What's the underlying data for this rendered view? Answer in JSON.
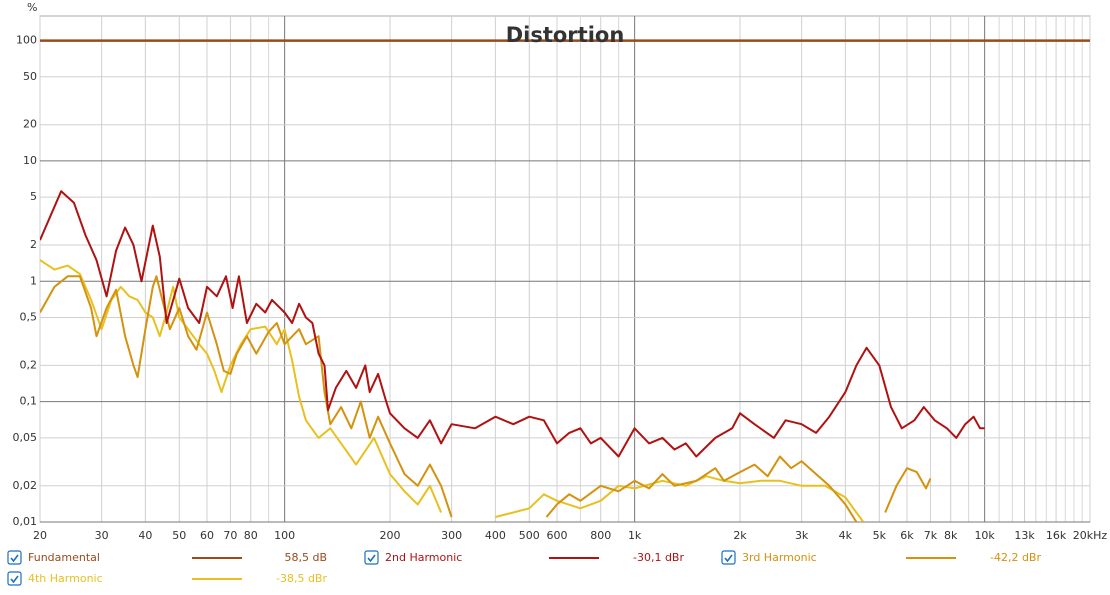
{
  "chart_data": {
    "type": "line",
    "title": "Distortion",
    "y_unit": "%",
    "log_x": true,
    "log_y": true,
    "grid": true,
    "xlim": [
      20,
      20000
    ],
    "ylim": [
      0.01,
      160
    ],
    "xticks": [
      20,
      30,
      40,
      50,
      60,
      70,
      80,
      100,
      200,
      300,
      400,
      500,
      600,
      800,
      {
        "value": 1000,
        "label": "1k"
      },
      {
        "value": 2000,
        "label": "2k"
      },
      {
        "value": 3000,
        "label": "3k"
      },
      {
        "value": 4000,
        "label": "4k"
      },
      {
        "value": 5000,
        "label": "5k"
      },
      {
        "value": 6000,
        "label": "6k"
      },
      {
        "value": 7000,
        "label": "7k"
      },
      {
        "value": 8000,
        "label": "8k"
      },
      {
        "value": 10000,
        "label": "10k"
      },
      {
        "value": 13000,
        "label": "13k"
      },
      {
        "value": 16000,
        "label": "16k"
      },
      {
        "value": 20000,
        "label": "20kHz"
      }
    ],
    "x_minor_grid": [
      90,
      700,
      900,
      9000,
      11000,
      12000,
      14000,
      15000,
      17000,
      18000,
      19000
    ],
    "yticks": [
      100,
      50,
      20,
      10,
      5,
      2,
      1,
      {
        "value": 0.5,
        "label": "0,5"
      },
      {
        "value": 0.2,
        "label": "0,2"
      },
      {
        "value": 0.1,
        "label": "0,1"
      },
      {
        "value": 0.05,
        "label": "0,05"
      },
      {
        "value": 0.02,
        "label": "0,02"
      },
      {
        "value": 0.01,
        "label": "0,01"
      }
    ],
    "series": [
      {
        "name": "Fundamental",
        "color": "#9a4a1c",
        "legend_value": "58,5 dB",
        "x": [
          20,
          20000
        ],
        "values": [
          100,
          100
        ]
      },
      {
        "name": "2nd Harmonic",
        "color": "#b01212",
        "legend_value": "-30,1 dBr",
        "x": [
          20,
          23,
          25,
          27,
          29,
          31,
          33,
          35,
          37,
          39,
          42,
          44,
          46,
          50,
          53,
          57,
          60,
          64,
          68,
          71,
          74,
          78,
          83,
          88,
          92,
          100,
          105,
          110,
          115,
          120,
          125,
          130,
          133,
          140,
          150,
          160,
          170,
          175,
          185,
          195,
          200,
          220,
          240,
          260,
          280,
          300,
          350,
          400,
          450,
          500,
          550,
          600,
          650,
          700,
          750,
          800,
          900,
          1000,
          1100,
          1200,
          1300,
          1400,
          1500,
          1700,
          1900,
          2000,
          2200,
          2500,
          2700,
          3000,
          3300,
          3600,
          4000,
          4300,
          4600,
          5000,
          5400,
          5800,
          6300,
          6700,
          7200,
          7800,
          8300,
          8800,
          9300,
          9700,
          10000
        ],
        "values": [
          2.2,
          5.6,
          4.5,
          2.4,
          1.5,
          0.75,
          1.8,
          2.8,
          2.0,
          1.0,
          2.9,
          1.6,
          0.45,
          1.05,
          0.6,
          0.45,
          0.9,
          0.75,
          1.1,
          0.6,
          1.1,
          0.45,
          0.65,
          0.55,
          0.7,
          0.55,
          0.45,
          0.65,
          0.5,
          0.45,
          0.25,
          0.2,
          0.085,
          0.13,
          0.18,
          0.13,
          0.2,
          0.12,
          0.17,
          0.1,
          0.08,
          0.06,
          0.05,
          0.07,
          0.045,
          0.065,
          0.06,
          0.075,
          0.065,
          0.075,
          0.07,
          0.045,
          0.055,
          0.06,
          0.045,
          0.05,
          0.035,
          0.06,
          0.045,
          0.05,
          0.04,
          0.045,
          0.035,
          0.05,
          0.06,
          0.08,
          0.065,
          0.05,
          0.07,
          0.065,
          0.055,
          0.075,
          0.12,
          0.2,
          0.28,
          0.2,
          0.09,
          0.06,
          0.07,
          0.09,
          0.07,
          0.06,
          0.05,
          0.065,
          0.075,
          0.06,
          0.06
        ]
      },
      {
        "name": "3rd Harmonic",
        "color": "#d4920e",
        "legend_value": "-42,2 dBr",
        "x": [
          20,
          22,
          24,
          26,
          28,
          29,
          31,
          33,
          35,
          37,
          38,
          40,
          42,
          43,
          45,
          47,
          50,
          53,
          56,
          60,
          64,
          67,
          70,
          73,
          78,
          83,
          90,
          95,
          100,
          110,
          115,
          125,
          130,
          135,
          145,
          155,
          165,
          175,
          185,
          200,
          220,
          240,
          260,
          280,
          300,
          350,
          450,
          560,
          600,
          650,
          700,
          800,
          900,
          1000,
          1100,
          1200,
          1300,
          1500,
          1700,
          1800,
          2000,
          2200,
          2400,
          2600,
          2800,
          3000,
          3300,
          3600,
          4000,
          4300,
          4800,
          5200,
          5600,
          6000,
          6400,
          6800,
          7000
        ],
        "values": [
          0.55,
          0.9,
          1.1,
          1.1,
          0.6,
          0.35,
          0.6,
          0.85,
          0.35,
          0.2,
          0.16,
          0.4,
          0.9,
          1.1,
          0.65,
          0.4,
          0.6,
          0.35,
          0.27,
          0.55,
          0.3,
          0.18,
          0.17,
          0.25,
          0.35,
          0.25,
          0.38,
          0.45,
          0.3,
          0.4,
          0.3,
          0.35,
          0.12,
          0.065,
          0.09,
          0.06,
          0.1,
          0.05,
          0.075,
          0.045,
          0.025,
          0.02,
          0.03,
          0.02,
          0.011,
          null,
          null,
          0.011,
          0.014,
          0.017,
          0.015,
          0.02,
          0.018,
          0.022,
          0.019,
          0.025,
          0.02,
          0.022,
          0.028,
          0.022,
          0.026,
          0.03,
          0.024,
          0.035,
          0.028,
          0.032,
          0.025,
          0.02,
          0.014,
          0.01,
          null,
          0.012,
          0.02,
          0.028,
          0.026,
          0.019,
          0.023
        ]
      },
      {
        "name": "4th Harmonic",
        "color": "#e8c020",
        "legend_value": "-38,5 dBr",
        "x": [
          20,
          22,
          24,
          26,
          28,
          30,
          32,
          34,
          36,
          38,
          40,
          42,
          44,
          46,
          48,
          50,
          53,
          57,
          60,
          63,
          66,
          70,
          75,
          80,
          88,
          95,
          100,
          105,
          110,
          115,
          125,
          135,
          145,
          160,
          180,
          200,
          220,
          240,
          260,
          280,
          300,
          400,
          450,
          500,
          550,
          600,
          700,
          800,
          900,
          1000,
          1200,
          1400,
          1600,
          1800,
          2000,
          2300,
          2600,
          3000,
          3500,
          4000,
          4300,
          4500
        ],
        "values": [
          1.5,
          1.25,
          1.35,
          1.15,
          0.7,
          0.4,
          0.7,
          0.9,
          0.75,
          0.7,
          0.55,
          0.5,
          0.35,
          0.55,
          0.9,
          0.5,
          0.4,
          0.3,
          0.25,
          0.18,
          0.12,
          0.2,
          0.3,
          0.4,
          0.42,
          0.3,
          0.4,
          0.22,
          0.11,
          0.07,
          0.05,
          0.06,
          0.045,
          0.03,
          0.05,
          0.025,
          0.018,
          0.014,
          0.02,
          0.012,
          null,
          0.011,
          0.012,
          0.013,
          0.017,
          0.015,
          0.013,
          0.015,
          0.02,
          0.019,
          0.022,
          0.02,
          0.024,
          0.022,
          0.021,
          0.022,
          0.022,
          0.02,
          0.02,
          0.016,
          0.012,
          0.01
        ]
      }
    ]
  }
}
